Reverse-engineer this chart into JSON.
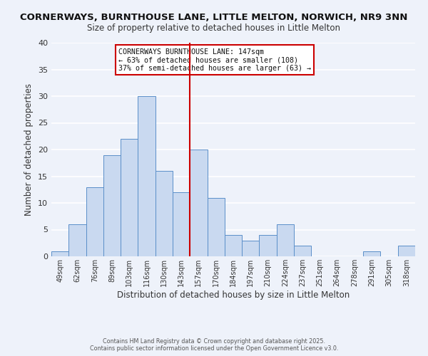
{
  "title": "CORNERWAYS, BURNTHOUSE LANE, LITTLE MELTON, NORWICH, NR9 3NN",
  "subtitle": "Size of property relative to detached houses in Little Melton",
  "xlabel": "Distribution of detached houses by size in Little Melton",
  "ylabel": "Number of detached properties",
  "bar_labels": [
    "49sqm",
    "62sqm",
    "76sqm",
    "89sqm",
    "103sqm",
    "116sqm",
    "130sqm",
    "143sqm",
    "157sqm",
    "170sqm",
    "184sqm",
    "197sqm",
    "210sqm",
    "224sqm",
    "237sqm",
    "251sqm",
    "264sqm",
    "278sqm",
    "291sqm",
    "305sqm",
    "318sqm"
  ],
  "bar_values": [
    1,
    6,
    13,
    19,
    22,
    30,
    16,
    12,
    20,
    11,
    4,
    3,
    4,
    6,
    2,
    0,
    0,
    0,
    1,
    0,
    2
  ],
  "bar_color": "#c9d9f0",
  "bar_edge_color": "#5b8fc9",
  "ylim": [
    0,
    40
  ],
  "yticks": [
    0,
    5,
    10,
    15,
    20,
    25,
    30,
    35,
    40
  ],
  "vline_x": 7.5,
  "vline_color": "#cc0000",
  "annotation_title": "CORNERWAYS BURNTHOUSE LANE: 147sqm",
  "annotation_line1": "← 63% of detached houses are smaller (108)",
  "annotation_line2": "37% of semi-detached houses are larger (63) →",
  "annotation_box_color": "#cc0000",
  "background_color": "#eef2fa",
  "grid_color": "#ffffff",
  "footer1": "Contains HM Land Registry data © Crown copyright and database right 2025.",
  "footer2": "Contains public sector information licensed under the Open Government Licence v3.0."
}
